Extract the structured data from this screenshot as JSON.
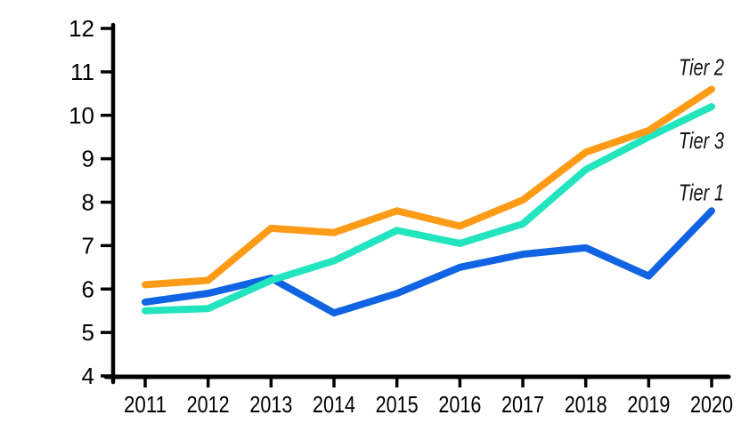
{
  "chart_data": {
    "type": "line",
    "title": "",
    "xlabel": "",
    "ylabel": "",
    "x": [
      "2011",
      "2012",
      "2013",
      "2014",
      "2015",
      "2016",
      "2017",
      "2018",
      "2019",
      "2020"
    ],
    "series": [
      {
        "name": "Tier 2",
        "color": "#FF9B17",
        "values": [
          6.1,
          6.2,
          7.4,
          7.3,
          7.8,
          7.45,
          8.05,
          9.15,
          9.65,
          10.6
        ],
        "label_offset_y": -16
      },
      {
        "name": "Tier 3",
        "color": "#22E4BE",
        "values": [
          5.5,
          5.55,
          6.2,
          6.65,
          7.35,
          7.05,
          7.5,
          8.75,
          9.5,
          10.2
        ],
        "label_offset_y": 47
      },
      {
        "name": "Tier 1",
        "color": "#1063E3",
        "values": [
          5.7,
          5.9,
          6.25,
          5.45,
          5.9,
          6.5,
          6.8,
          6.95,
          6.3,
          7.8
        ],
        "label_offset_y": -12
      }
    ],
    "ylim": [
      4,
      12
    ],
    "ytick_interval": 1,
    "yticks": [
      "4",
      "5",
      "6",
      "7",
      "8",
      "9",
      "10",
      "11",
      "12"
    ],
    "grid": false,
    "legend_position": "end-of-line-right",
    "axis_color": "#000000",
    "text_color": "#000000",
    "background": "#FFFFFF",
    "line_style": "thick-hand-drawn"
  }
}
